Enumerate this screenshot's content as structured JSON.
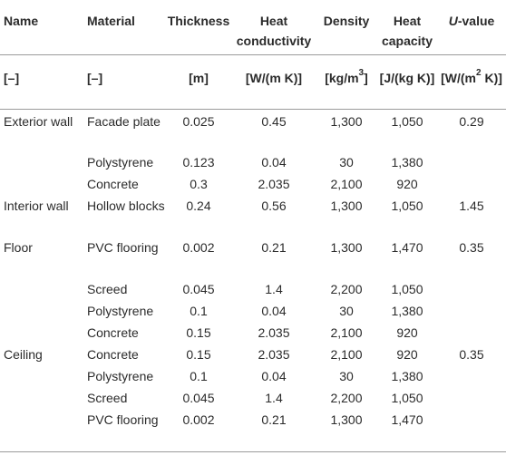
{
  "headers": {
    "name": "Name",
    "material": "Material",
    "thickness": "Thickness",
    "conductivity": "Heat conductivity",
    "density": "Density",
    "capacity": "Heat capacity",
    "u_value_italic": "U",
    "u_value_rest": "-value"
  },
  "units": {
    "name": "[–]",
    "material": "[–]",
    "thickness": "[m]",
    "conductivity": "[W/(m K)]",
    "density_pre": "[kg/m",
    "density_sup": "3",
    "density_post": "]",
    "capacity": "[J/(kg K)]",
    "u_pre": "[W/(m",
    "u_sup": "2",
    "u_post": " K)]"
  },
  "rows": [
    {
      "name": "Exterior wall",
      "material": "Facade plate",
      "thickness": "0.025",
      "conductivity": "0.45",
      "density": "1,300",
      "capacity": "1,050",
      "u": "0.29"
    },
    {
      "name": "",
      "material": "Polystyrene",
      "thickness": "0.123",
      "conductivity": "0.04",
      "density": "30",
      "capacity": "1,380",
      "u": ""
    },
    {
      "name": "",
      "material": "Concrete",
      "thickness": "0.3",
      "conductivity": "2.035",
      "density": "2,100",
      "capacity": "920",
      "u": ""
    },
    {
      "name": "Interior wall",
      "material": "Hollow blocks",
      "thickness": "0.24",
      "conductivity": "0.56",
      "density": "1,300",
      "capacity": "1,050",
      "u": "1.45"
    },
    {
      "name": "Floor",
      "material": "PVC flooring",
      "thickness": "0.002",
      "conductivity": "0.21",
      "density": "1,300",
      "capacity": "1,470",
      "u": "0.35"
    },
    {
      "name": "",
      "material": "Screed",
      "thickness": "0.045",
      "conductivity": "1.4",
      "density": "2,200",
      "capacity": "1,050",
      "u": ""
    },
    {
      "name": "",
      "material": "Polystyrene",
      "thickness": "0.1",
      "conductivity": "0.04",
      "density": "30",
      "capacity": "1,380",
      "u": ""
    },
    {
      "name": "",
      "material": "Concrete",
      "thickness": "0.15",
      "conductivity": "2.035",
      "density": "2,100",
      "capacity": "920",
      "u": ""
    },
    {
      "name": "Ceiling",
      "material": "Concrete",
      "thickness": "0.15",
      "conductivity": "2.035",
      "density": "2,100",
      "capacity": "920",
      "u": "0.35"
    },
    {
      "name": "",
      "material": "Polystyrene",
      "thickness": "0.1",
      "conductivity": "0.04",
      "density": "30",
      "capacity": "1,380",
      "u": ""
    },
    {
      "name": "",
      "material": "Screed",
      "thickness": "0.045",
      "conductivity": "1.4",
      "density": "2,200",
      "capacity": "1,050",
      "u": ""
    },
    {
      "name": "",
      "material": "PVC flooring",
      "thickness": "0.002",
      "conductivity": "0.21",
      "density": "1,300",
      "capacity": "1,470",
      "u": ""
    }
  ]
}
